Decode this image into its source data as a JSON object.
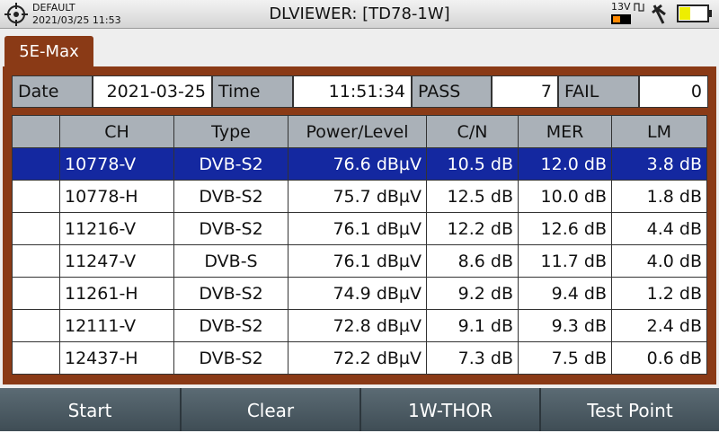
{
  "status_bar": {
    "profile": "DEFAULT",
    "datetime": "2021/03/25 11:53",
    "title": "DLVIEWER: [TD78-1W]",
    "voltage": "13V"
  },
  "tab": "5E-Max",
  "summary": {
    "date_label": "Date",
    "date": "2021-03-25",
    "time_label": "Time",
    "time": "11:51:34",
    "pass_label": "PASS",
    "pass": 7,
    "fail_label": "FAIL",
    "fail": 0
  },
  "table": {
    "columns": [
      "CH",
      "Type",
      "Power/Level",
      "C/N",
      "MER",
      "LM"
    ],
    "rows": [
      [
        "10778-V",
        "DVB-S2",
        "76.6 dBµV",
        "10.5 dB",
        "12.0 dB",
        "3.8 dB"
      ],
      [
        "10778-H",
        "DVB-S2",
        "75.7 dBµV",
        "12.5 dB",
        "10.0 dB",
        "1.8 dB"
      ],
      [
        "11216-V",
        "DVB-S2",
        "76.1 dBµV",
        "12.2 dB",
        "12.6 dB",
        "4.4 dB"
      ],
      [
        "11247-V",
        "DVB-S",
        "76.1 dBµV",
        "8.6 dB",
        "11.7 dB",
        "4.0 dB"
      ],
      [
        "11261-H",
        "DVB-S2",
        "74.9 dBµV",
        "9.2 dB",
        "9.4 dB",
        "1.2 dB"
      ],
      [
        "12111-V",
        "DVB-S2",
        "72.8 dBµV",
        "9.1 dB",
        "9.3 dB",
        "2.4 dB"
      ],
      [
        "12437-H",
        "DVB-S2",
        "72.2 dBµV",
        "7.3 dB",
        "7.5 dB",
        "0.6 dB"
      ]
    ]
  },
  "softkeys": [
    "Start",
    "Clear",
    "1W-THOR",
    "Test Point"
  ]
}
